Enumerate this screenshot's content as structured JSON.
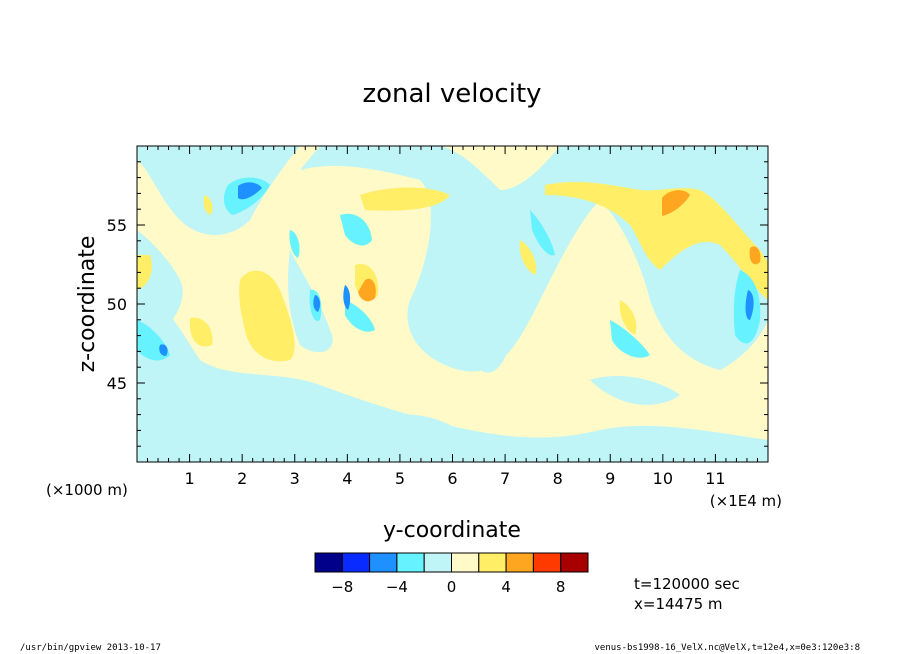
{
  "chart_data": {
    "type": "heatmap",
    "title": "zonal velocity",
    "xlabel": "y-coordinate",
    "ylabel": "z-coordinate",
    "x_scale_note": "(×1E4 m)",
    "y_scale_note": "(×1000 m)",
    "xlim": [
      0,
      12
    ],
    "ylim": [
      40,
      60
    ],
    "x_ticks": [
      "1",
      "2",
      "3",
      "4",
      "5",
      "6",
      "7",
      "8",
      "9",
      "10",
      "11"
    ],
    "y_ticks": [
      "45",
      "50",
      "55"
    ],
    "colorbar": {
      "levels": [
        -10,
        -8,
        -6,
        -4,
        -2,
        0,
        2,
        4,
        6,
        8,
        10
      ],
      "colors": [
        "#00008b",
        "#0a2bff",
        "#1e90ff",
        "#66f2ff",
        "#bff5f7",
        "#fffac8",
        "#ffee66",
        "#ffa620",
        "#ff3a00",
        "#a80000"
      ],
      "tick_labels": [
        "−8",
        "−4",
        "0",
        "4",
        "8"
      ],
      "tick_values": [
        -8,
        -4,
        0,
        4,
        8
      ]
    },
    "annotations": {
      "time": "t=120000 sec",
      "position": "x=14475 m"
    },
    "footer_left": "/usr/bin/gpview  2013-10-17",
    "footer_right": "venus-bs1998-16_VelX.nc@VelX,t=12e4,x=0e3:120e3:8"
  }
}
